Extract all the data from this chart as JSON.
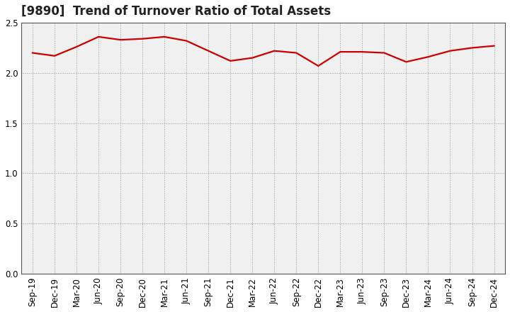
{
  "title": "[9890]  Trend of Turnover Ratio of Total Assets",
  "x_labels": [
    "Sep-19",
    "Dec-19",
    "Mar-20",
    "Jun-20",
    "Sep-20",
    "Dec-20",
    "Mar-21",
    "Jun-21",
    "Sep-21",
    "Dec-21",
    "Mar-22",
    "Jun-22",
    "Sep-22",
    "Dec-22",
    "Mar-23",
    "Jun-23",
    "Sep-23",
    "Dec-23",
    "Mar-24",
    "Jun-24",
    "Sep-24",
    "Dec-24"
  ],
  "y_values": [
    2.2,
    2.17,
    2.26,
    2.36,
    2.33,
    2.34,
    2.36,
    2.32,
    2.22,
    2.12,
    2.15,
    2.22,
    2.2,
    2.07,
    2.21,
    2.21,
    2.2,
    2.11,
    2.16,
    2.22,
    2.25,
    2.27
  ],
  "line_color": "#cc0000",
  "line_width": 1.6,
  "ylim": [
    0.0,
    2.5
  ],
  "yticks": [
    0.0,
    0.5,
    1.0,
    1.5,
    2.0,
    2.5
  ],
  "grid_color": "#999999",
  "bg_color": "#ffffff",
  "plot_bg_color": "#f0f0f0",
  "title_fontsize": 12,
  "tick_fontsize": 8.5,
  "spine_color": "#555555"
}
